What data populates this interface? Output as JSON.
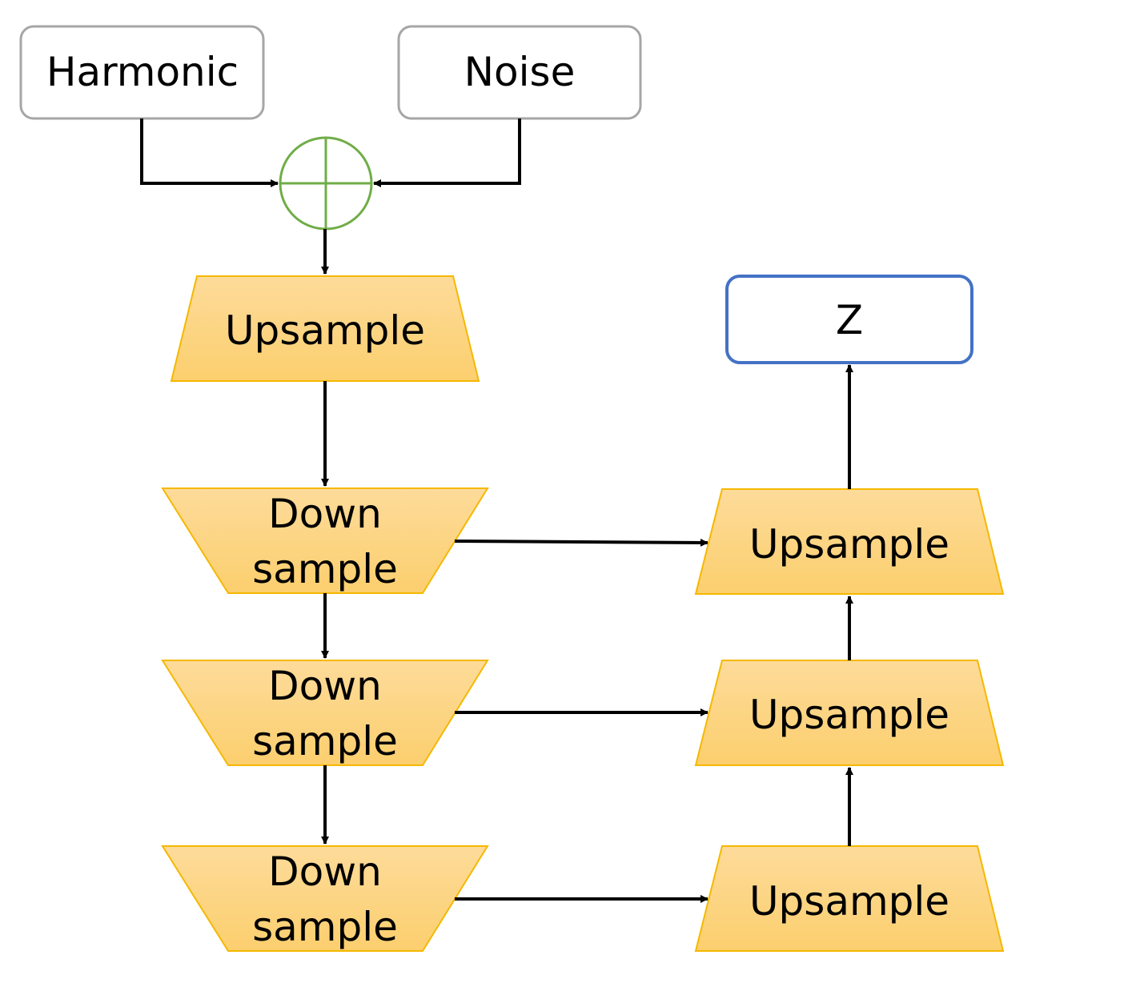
{
  "inputs": {
    "harmonic": "Harmonic",
    "noise": "Noise"
  },
  "sum_node": {
    "symbol": "plus",
    "stroke_color": "#70AD47"
  },
  "encoder": {
    "upsample_label": "Upsample",
    "down_blocks": [
      {
        "line1": "Down",
        "line2": "sample"
      },
      {
        "line1": "Down",
        "line2": "sample"
      },
      {
        "line1": "Down",
        "line2": "sample"
      }
    ]
  },
  "decoder": {
    "up_blocks": [
      {
        "label": "Upsample"
      },
      {
        "label": "Upsample"
      },
      {
        "label": "Upsample"
      }
    ]
  },
  "output": {
    "label": "Z"
  },
  "colors": {
    "block_fill_top": "#FDDB9A",
    "block_fill_bottom": "#FCCF6E",
    "block_stroke": "#F5B800",
    "input_box_stroke": "#A6A6A6",
    "output_box_stroke": "#4472C4",
    "arrow": "#000000"
  }
}
